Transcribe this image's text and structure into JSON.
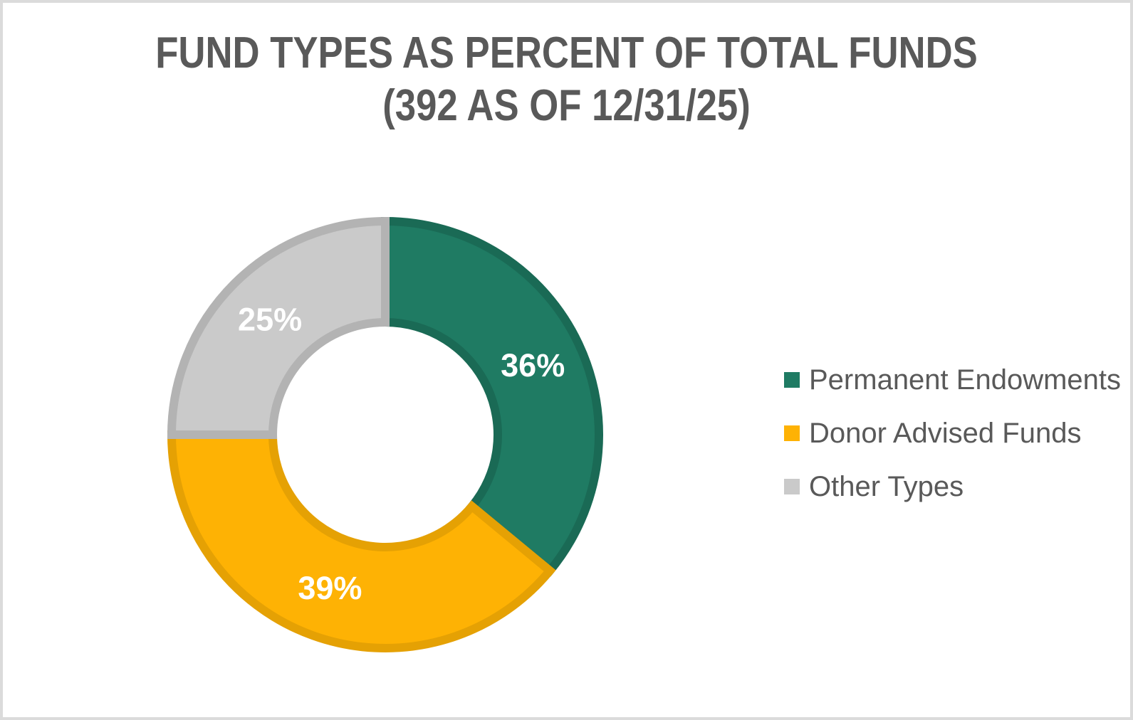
{
  "title": {
    "line1": "FUND TYPES AS PERCENT OF TOTAL FUNDS",
    "line2": "(392 AS OF 12/31/25)"
  },
  "chart_data": {
    "type": "pie",
    "subtype": "donut",
    "title": "FUND TYPES AS PERCENT OF TOTAL FUNDS (392 AS OF 12/31/25)",
    "categories": [
      "Permanent Endowments",
      "Donor Advised Funds",
      "Other Types"
    ],
    "values": [
      36,
      39,
      25
    ],
    "unit": "percent",
    "data_labels": [
      "36%",
      "39%",
      "25%"
    ],
    "colors": [
      "#1F7B63",
      "#FEB204",
      "#CACACA"
    ],
    "border_colors": [
      "#1A6A55",
      "#E5A104",
      "#B3B3B3"
    ],
    "data_label_color": "#FFFFFF",
    "start_angle": "12-oclock",
    "direction": "clockwise",
    "hole_ratio": 0.51,
    "legend_position": "right"
  },
  "frame": {
    "border_color": "#DBDBDB"
  },
  "text_color": "#595959"
}
